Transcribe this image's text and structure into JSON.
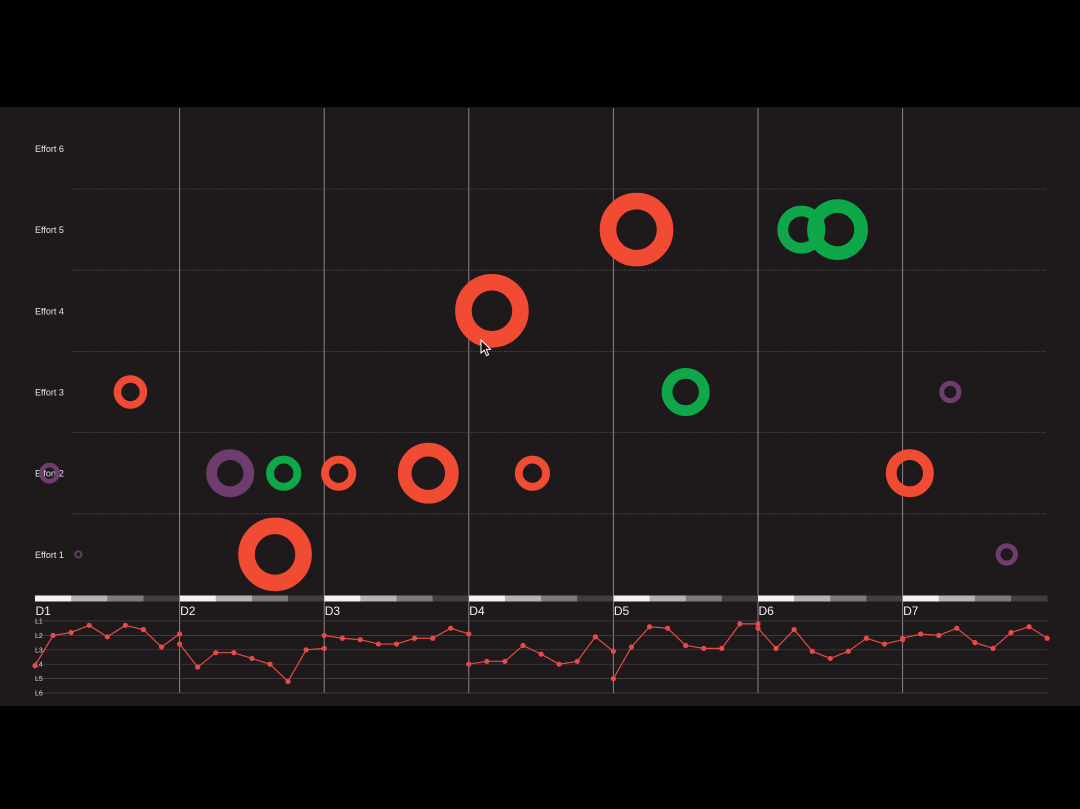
{
  "chart_data": [
    {
      "type": "scatter",
      "title": "",
      "xlabel": "",
      "ylabel": "",
      "x_ticks": [
        "D1",
        "D2",
        "D3",
        "D4",
        "D5",
        "D6",
        "D7"
      ],
      "y_ticks": [
        "Effort 1",
        "Effort 2",
        "Effort 3",
        "Effort 4",
        "Effort 5",
        "Effort 6"
      ],
      "xlim": [
        0,
        7
      ],
      "ylim": [
        0.5,
        6.5
      ],
      "grid": true,
      "colors": {
        "red": "#f24b33",
        "green": "#0ea84a",
        "purple": "#6e3d6e"
      },
      "points": [
        {
          "x": 0.1,
          "y": 2,
          "size": 1.3,
          "color": "purple"
        },
        {
          "x": 0.3,
          "y": 1,
          "size": 0.5,
          "color": "purple"
        },
        {
          "x": 0.66,
          "y": 3,
          "size": 2.1,
          "color": "red"
        },
        {
          "x": 1.35,
          "y": 2,
          "size": 3.0,
          "color": "purple"
        },
        {
          "x": 1.66,
          "y": 1,
          "size": 4.6,
          "color": "red"
        },
        {
          "x": 1.72,
          "y": 2,
          "size": 2.2,
          "color": "green"
        },
        {
          "x": 2.1,
          "y": 2,
          "size": 2.2,
          "color": "red"
        },
        {
          "x": 2.72,
          "y": 2,
          "size": 3.8,
          "color": "red"
        },
        {
          "x": 3.16,
          "y": 4,
          "size": 4.6,
          "color": "red"
        },
        {
          "x": 3.44,
          "y": 2,
          "size": 2.2,
          "color": "red"
        },
        {
          "x": 4.16,
          "y": 5,
          "size": 4.6,
          "color": "red"
        },
        {
          "x": 4.5,
          "y": 3,
          "size": 3.0,
          "color": "green"
        },
        {
          "x": 5.3,
          "y": 5,
          "size": 3.0,
          "color": "green"
        },
        {
          "x": 5.55,
          "y": 5,
          "size": 3.8,
          "color": "green"
        },
        {
          "x": 6.05,
          "y": 2,
          "size": 3.0,
          "color": "red"
        },
        {
          "x": 6.33,
          "y": 3,
          "size": 1.4,
          "color": "purple"
        },
        {
          "x": 6.72,
          "y": 1,
          "size": 1.4,
          "color": "purple"
        }
      ]
    },
    {
      "type": "line",
      "title": "",
      "xlabel": "",
      "ylabel": "",
      "y_ticks": [
        "L1",
        "L2",
        "L3",
        "L4",
        "L5",
        "L6"
      ],
      "xlim": [
        0,
        7
      ],
      "ylim": [
        1,
        6
      ],
      "line_color": "#e84a4a",
      "segments": [
        {
          "name": "",
          "x": [
            0,
            0.125,
            0.25,
            0.375,
            0.5,
            0.625,
            0.75,
            0.875,
            1.0
          ],
          "y": [
            4.1,
            2.0,
            1.8,
            1.3,
            2.1,
            1.3,
            1.6,
            2.8,
            1.9
          ]
        },
        {
          "name": "",
          "x": [
            1.0,
            1.125,
            1.25,
            1.375,
            1.5,
            1.625,
            1.75,
            1.875,
            2.0
          ],
          "y": [
            2.6,
            4.2,
            3.2,
            3.2,
            3.6,
            4.0,
            5.2,
            3.0,
            2.9
          ]
        },
        {
          "name": "",
          "x": [
            2.0,
            2.125,
            2.25,
            2.375,
            2.5,
            2.625,
            2.75,
            2.875,
            3.0
          ],
          "y": [
            2.0,
            2.2,
            2.3,
            2.6,
            2.6,
            2.2,
            2.2,
            1.5,
            1.9
          ]
        },
        {
          "name": "",
          "x": [
            3.0,
            3.125,
            3.25,
            3.375,
            3.5,
            3.625,
            3.75,
            3.875,
            4.0
          ],
          "y": [
            4.0,
            3.8,
            3.8,
            2.7,
            3.3,
            4.0,
            3.8,
            2.1,
            3.1
          ]
        },
        {
          "name": "",
          "x": [
            4.0,
            4.125,
            4.25,
            4.375,
            4.5,
            4.625,
            4.75,
            4.875,
            5.0
          ],
          "y": [
            5.0,
            2.8,
            1.4,
            1.5,
            2.7,
            2.9,
            2.9,
            1.2,
            1.2
          ]
        },
        {
          "name": "",
          "x": [
            5.0,
            5.125,
            5.25,
            5.375,
            5.5,
            5.625,
            5.75,
            5.875,
            6.0
          ],
          "y": [
            1.5,
            2.9,
            1.6,
            3.1,
            3.6,
            3.1,
            2.2,
            2.6,
            2.3
          ]
        },
        {
          "name": "",
          "x": [
            6.0,
            6.125,
            6.25,
            6.375,
            6.5,
            6.625,
            6.75,
            6.875,
            7.0
          ],
          "y": [
            2.2,
            1.9,
            2.0,
            1.5,
            2.5,
            2.9,
            1.8,
            1.4,
            2.2
          ]
        }
      ]
    }
  ]
}
